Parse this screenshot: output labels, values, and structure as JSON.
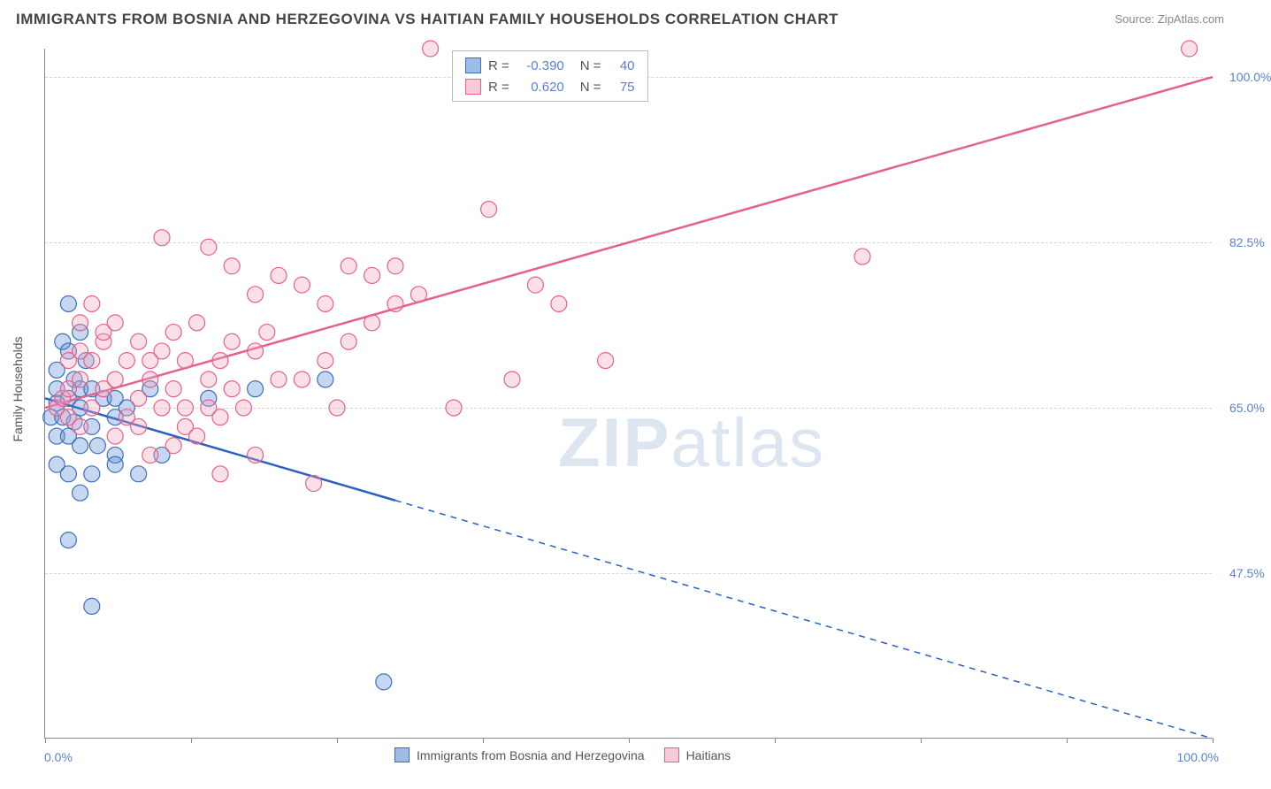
{
  "title": "IMMIGRANTS FROM BOSNIA AND HERZEGOVINA VS HAITIAN FAMILY HOUSEHOLDS CORRELATION CHART",
  "source": "Source: ZipAtlas.com",
  "watermark_a": "ZIP",
  "watermark_b": "atlas",
  "y_axis_title": "Family Households",
  "chart": {
    "type": "scatter",
    "background_color": "#ffffff",
    "grid_color": "#d5d5d5",
    "axis_color": "#888888",
    "xlim": [
      0,
      100
    ],
    "ylim": [
      30,
      103
    ],
    "x_tick_positions": [
      0,
      12.5,
      25,
      37.5,
      50,
      62.5,
      75,
      87.5,
      100
    ],
    "x_min_label": "0.0%",
    "x_max_label": "100.0%",
    "y_gridlines": [
      {
        "value": 47.5,
        "label": "47.5%"
      },
      {
        "value": 65.0,
        "label": "65.0%"
      },
      {
        "value": 82.5,
        "label": "82.5%"
      },
      {
        "value": 100.0,
        "label": "100.0%"
      }
    ],
    "y_tick_color": "#5b7fd1",
    "marker_radius": 9,
    "marker_fill_opacity": 0.35,
    "marker_stroke_width": 1.2,
    "trend_line_width": 2.5,
    "series": [
      {
        "name": "Immigrants from Bosnia and Herzegovina",
        "color": "#5b8fd6",
        "stroke": "#3d6fb8",
        "line_color": "#2a5fc4",
        "R": "-0.390",
        "N": "40",
        "trend": {
          "x1": 0,
          "y1": 66,
          "x2": 100,
          "y2": 30
        },
        "solid_until_x": 30,
        "points": [
          [
            2,
            76
          ],
          [
            3,
            73
          ],
          [
            1.5,
            72
          ],
          [
            2,
            71
          ],
          [
            3.5,
            70
          ],
          [
            1,
            69
          ],
          [
            2.5,
            68
          ],
          [
            1,
            67
          ],
          [
            3,
            67
          ],
          [
            4,
            67
          ],
          [
            1,
            65.5
          ],
          [
            2,
            66
          ],
          [
            3,
            65
          ],
          [
            5,
            66
          ],
          [
            6,
            66
          ],
          [
            0.5,
            64
          ],
          [
            1.5,
            64
          ],
          [
            2.5,
            63.5
          ],
          [
            4,
            63
          ],
          [
            6,
            64
          ],
          [
            7,
            65
          ],
          [
            9,
            67
          ],
          [
            1,
            62
          ],
          [
            2,
            62
          ],
          [
            3,
            61
          ],
          [
            4.5,
            61
          ],
          [
            6,
            60
          ],
          [
            1,
            59
          ],
          [
            2,
            58
          ],
          [
            4,
            58
          ],
          [
            6,
            59
          ],
          [
            3,
            56
          ],
          [
            8,
            58
          ],
          [
            10,
            60
          ],
          [
            14,
            66
          ],
          [
            18,
            67
          ],
          [
            2,
            51
          ],
          [
            4,
            44
          ],
          [
            24,
            68
          ],
          [
            29,
            36
          ]
        ]
      },
      {
        "name": "Haitians",
        "color": "#f4a6be",
        "stroke": "#e6608c",
        "line_color": "#e6608c",
        "R": "0.620",
        "N": "75",
        "trend": {
          "x1": 0,
          "y1": 65,
          "x2": 100,
          "y2": 100
        },
        "points": [
          [
            1,
            65
          ],
          [
            1.5,
            66
          ],
          [
            2,
            67
          ],
          [
            3,
            68
          ],
          [
            2,
            70
          ],
          [
            3,
            71
          ],
          [
            4,
            70
          ],
          [
            5,
            72
          ],
          [
            2,
            64
          ],
          [
            3,
            63
          ],
          [
            4,
            65
          ],
          [
            5,
            67
          ],
          [
            6,
            68
          ],
          [
            7,
            70
          ],
          [
            3,
            74
          ],
          [
            5,
            73
          ],
          [
            4,
            76
          ],
          [
            6,
            74
          ],
          [
            8,
            72
          ],
          [
            9,
            70
          ],
          [
            10,
            71
          ],
          [
            11,
            73
          ],
          [
            12,
            70
          ],
          [
            13,
            74
          ],
          [
            7,
            64
          ],
          [
            8,
            66
          ],
          [
            9,
            68
          ],
          [
            11,
            67
          ],
          [
            12,
            65
          ],
          [
            14,
            68
          ],
          [
            15,
            70
          ],
          [
            16,
            72
          ],
          [
            6,
            62
          ],
          [
            8,
            63
          ],
          [
            10,
            65
          ],
          [
            12,
            63
          ],
          [
            14,
            65
          ],
          [
            16,
            67
          ],
          [
            18,
            71
          ],
          [
            19,
            73
          ],
          [
            9,
            60
          ],
          [
            11,
            61
          ],
          [
            13,
            62
          ],
          [
            15,
            64
          ],
          [
            17,
            65
          ],
          [
            20,
            68
          ],
          [
            16,
            80
          ],
          [
            18,
            77
          ],
          [
            20,
            79
          ],
          [
            22,
            78
          ],
          [
            24,
            76
          ],
          [
            26,
            80
          ],
          [
            28,
            79
          ],
          [
            30,
            80
          ],
          [
            32,
            77
          ],
          [
            22,
            68
          ],
          [
            24,
            70
          ],
          [
            26,
            72
          ],
          [
            28,
            74
          ],
          [
            30,
            76
          ],
          [
            33,
            103
          ],
          [
            15,
            58
          ],
          [
            18,
            60
          ],
          [
            23,
            57
          ],
          [
            25,
            65
          ],
          [
            35,
            65
          ],
          [
            38,
            86
          ],
          [
            40,
            68
          ],
          [
            42,
            78
          ],
          [
            44,
            76
          ],
          [
            48,
            70
          ],
          [
            70,
            81
          ],
          [
            98,
            103
          ],
          [
            10,
            83
          ],
          [
            14,
            82
          ]
        ]
      }
    ]
  },
  "bottom_legend": {
    "items": [
      {
        "label": "Immigrants from Bosnia and Herzegovina",
        "color": "#5b8fd6",
        "stroke": "#3d6fb8"
      },
      {
        "label": "Haitians",
        "color": "#f4a6be",
        "stroke": "#e6608c"
      }
    ]
  }
}
